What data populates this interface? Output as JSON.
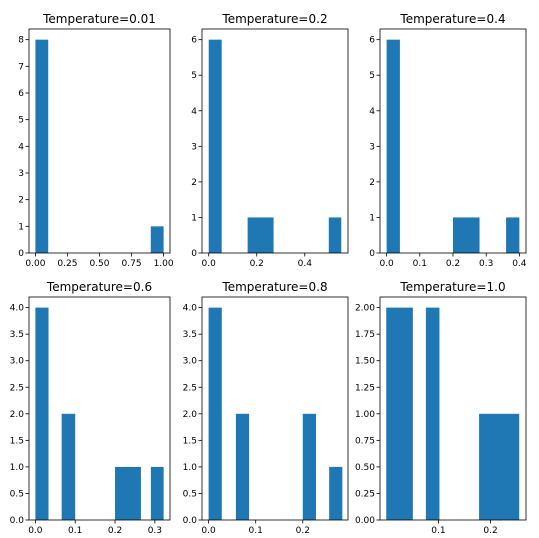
{
  "chart_data": [
    {
      "type": "bar",
      "title": "Temperature=0.01",
      "color": "#1f77b4",
      "xlim": [
        -0.05,
        1.05
      ],
      "ylim": [
        0,
        8.4
      ],
      "xticks": [
        0.0,
        0.25,
        0.5,
        0.75,
        1.0
      ],
      "xtick_labels": [
        "0.00",
        "0.25",
        "0.50",
        "0.75",
        "1.00"
      ],
      "yticks": [
        0,
        1,
        2,
        3,
        4,
        5,
        6,
        7,
        8
      ],
      "ytick_labels": [
        "0",
        "1",
        "2",
        "3",
        "4",
        "5",
        "6",
        "7",
        "8"
      ],
      "bars": [
        {
          "x0": 0.0,
          "x1": 0.1,
          "value": 8
        },
        {
          "x0": 0.9,
          "x1": 1.0,
          "value": 1
        }
      ]
    },
    {
      "type": "bar",
      "title": "Temperature=0.2",
      "color": "#1f77b4",
      "xlim": [
        -0.028,
        0.58
      ],
      "ylim": [
        0,
        6.3
      ],
      "xticks": [
        0.0,
        0.2,
        0.4
      ],
      "xtick_labels": [
        "0.0",
        "0.2",
        "0.4"
      ],
      "yticks": [
        0,
        1,
        2,
        3,
        4,
        5,
        6
      ],
      "ytick_labels": [
        "0",
        "1",
        "2",
        "3",
        "4",
        "5",
        "6"
      ],
      "bars": [
        {
          "x0": 0.0,
          "x1": 0.054,
          "value": 6
        },
        {
          "x0": 0.162,
          "x1": 0.27,
          "value": 1
        },
        {
          "x0": 0.5,
          "x1": 0.552,
          "value": 1
        }
      ]
    },
    {
      "type": "bar",
      "title": "Temperature=0.4",
      "color": "#1f77b4",
      "xlim": [
        -0.02,
        0.42
      ],
      "ylim": [
        0,
        6.3
      ],
      "xticks": [
        0.0,
        0.1,
        0.2,
        0.3,
        0.4
      ],
      "xtick_labels": [
        "0.0",
        "0.1",
        "0.2",
        "0.3",
        "0.4"
      ],
      "yticks": [
        0,
        1,
        2,
        3,
        4,
        5,
        6
      ],
      "ytick_labels": [
        "0",
        "1",
        "2",
        "3",
        "4",
        "5",
        "6"
      ],
      "bars": [
        {
          "x0": 0.0,
          "x1": 0.04,
          "value": 6
        },
        {
          "x0": 0.2,
          "x1": 0.28,
          "value": 1
        },
        {
          "x0": 0.36,
          "x1": 0.4,
          "value": 1
        }
      ]
    },
    {
      "type": "bar",
      "title": "Temperature=0.6",
      "color": "#1f77b4",
      "xlim": [
        -0.016,
        0.338
      ],
      "ylim": [
        0,
        4.2
      ],
      "xticks": [
        0.0,
        0.1,
        0.2,
        0.3
      ],
      "xtick_labels": [
        "0.0",
        "0.1",
        "0.2",
        "0.3"
      ],
      "yticks": [
        0.0,
        0.5,
        1.0,
        1.5,
        2.0,
        2.5,
        3.0,
        3.5,
        4.0
      ],
      "ytick_labels": [
        "0.0",
        "0.5",
        "1.0",
        "1.5",
        "2.0",
        "2.5",
        "3.0",
        "3.5",
        "4.0"
      ],
      "bars": [
        {
          "x0": 0.0,
          "x1": 0.033,
          "value": 4
        },
        {
          "x0": 0.066,
          "x1": 0.1,
          "value": 2
        },
        {
          "x0": 0.2,
          "x1": 0.265,
          "value": 1
        },
        {
          "x0": 0.29,
          "x1": 0.322,
          "value": 1
        }
      ]
    },
    {
      "type": "bar",
      "title": "Temperature=0.8",
      "color": "#1f77b4",
      "xlim": [
        -0.014,
        0.296
      ],
      "ylim": [
        0,
        4.2
      ],
      "xticks": [
        0.0,
        0.1,
        0.2
      ],
      "xtick_labels": [
        "0.0",
        "0.1",
        "0.2"
      ],
      "yticks": [
        0.0,
        0.5,
        1.0,
        1.5,
        2.0,
        2.5,
        3.0,
        3.5,
        4.0
      ],
      "ytick_labels": [
        "0.0",
        "0.5",
        "1.0",
        "1.5",
        "2.0",
        "2.5",
        "3.0",
        "3.5",
        "4.0"
      ],
      "bars": [
        {
          "x0": 0.0,
          "x1": 0.028,
          "value": 4
        },
        {
          "x0": 0.058,
          "x1": 0.086,
          "value": 2
        },
        {
          "x0": 0.2,
          "x1": 0.228,
          "value": 2
        },
        {
          "x0": 0.256,
          "x1": 0.284,
          "value": 1
        }
      ]
    },
    {
      "type": "bar",
      "title": "Temperature=1.0",
      "color": "#1f77b4",
      "xlim": [
        -0.012,
        0.268
      ],
      "ylim": [
        0,
        2.1
      ],
      "xticks": [
        0.1,
        0.2
      ],
      "xtick_labels": [
        "0.1",
        "0.2"
      ],
      "yticks": [
        0.0,
        0.25,
        0.5,
        0.75,
        1.0,
        1.25,
        1.5,
        1.75,
        2.0
      ],
      "ytick_labels": [
        "0.00",
        "0.25",
        "0.50",
        "0.75",
        "1.00",
        "1.25",
        "1.50",
        "1.75",
        "2.00"
      ],
      "bars": [
        {
          "x0": 0.0,
          "x1": 0.051,
          "value": 2
        },
        {
          "x0": 0.076,
          "x1": 0.102,
          "value": 2
        },
        {
          "x0": 0.178,
          "x1": 0.255,
          "value": 1
        }
      ]
    }
  ]
}
